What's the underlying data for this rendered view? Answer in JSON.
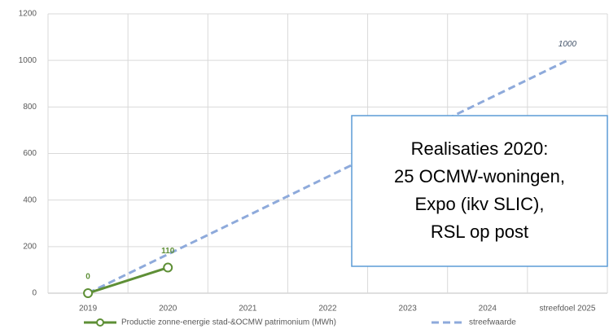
{
  "chart_data": {
    "type": "line",
    "categories": [
      "2019",
      "2020",
      "2021",
      "2022",
      "2023",
      "2024",
      "streefdoel 2025"
    ],
    "series": [
      {
        "name": "Productie zonne-energie stad-&OCMW patrimonium (MWh)",
        "color": "#5e8f36",
        "dash": false,
        "marker": true,
        "values": [
          0,
          110,
          null,
          null,
          null,
          null,
          null
        ],
        "value_labels": [
          "0",
          "110",
          null,
          null,
          null,
          null,
          null
        ]
      },
      {
        "name": "streefwaarde",
        "color": "#8eaadb",
        "dash": true,
        "marker": false,
        "values": [
          0,
          167,
          333,
          500,
          667,
          833,
          1000
        ],
        "value_labels": [
          null,
          null,
          null,
          null,
          null,
          null,
          "1000"
        ]
      }
    ],
    "ylim": [
      0,
      1200
    ],
    "yticks": [
      0,
      200,
      400,
      600,
      800,
      1000,
      1200
    ],
    "grid": true,
    "annotation": [
      "Realisaties 2020:",
      "25 OCMW-woningen,",
      "Expo (ikv SLIC),",
      "RSL op post"
    ]
  }
}
